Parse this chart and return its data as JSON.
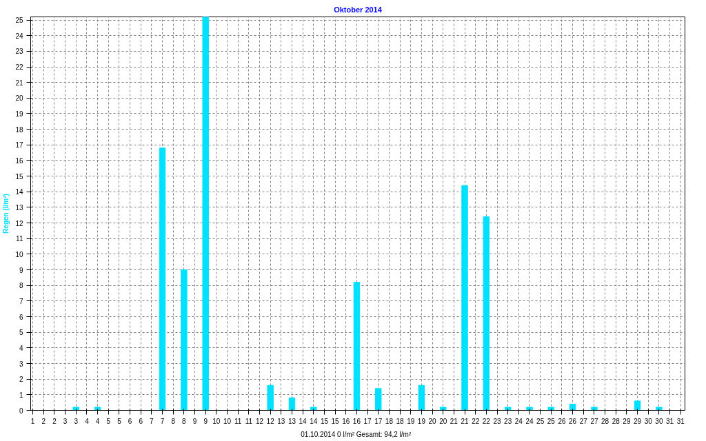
{
  "chart_data": {
    "type": "bar",
    "title": "Oktober 2014",
    "ylabel": "Regen (l/m²)",
    "annotations": [
      "01.10.2014   0 l/m² Gesamt: 94,2 l/m²"
    ],
    "x": [
      1,
      2,
      3,
      4,
      5,
      6,
      7,
      8,
      9,
      10,
      11,
      12,
      13,
      14,
      15,
      16,
      17,
      18,
      19,
      20,
      21,
      22,
      23,
      24,
      25,
      26,
      27,
      28,
      29,
      30,
      31
    ],
    "series": [
      {
        "color": "#00e1ff",
        "values": [
          0,
          0,
          0.2,
          0.2,
          0,
          0,
          16.8,
          9.0,
          25.2,
          0,
          0,
          1.6,
          0.8,
          0.2,
          0,
          8.2,
          1.4,
          0,
          1.6,
          0.2,
          14.4,
          12.4,
          0.2,
          0.2,
          0.2,
          0.4,
          0.2,
          0,
          0.6,
          0.2,
          0
        ]
      }
    ],
    "xlim": [
      0.9,
      31.2
    ],
    "xticks": [
      1,
      {
        "value": 1.5,
        "label": "2"
      },
      2,
      {
        "value": 2.5,
        "label": "3"
      },
      3,
      {
        "value": 3.5,
        "label": "4"
      },
      4,
      {
        "value": 4.5,
        "label": "5"
      },
      5,
      {
        "value": 5.5,
        "label": "6"
      },
      6,
      {
        "value": 6.5,
        "label": "7"
      },
      7,
      {
        "value": 7.5,
        "label": "8"
      },
      8,
      {
        "value": 8.5,
        "label": "9"
      },
      9,
      {
        "value": 9.5,
        "label": "10"
      },
      10,
      {
        "value": 10.5,
        "label": "11"
      },
      11,
      {
        "value": 11.5,
        "label": "12"
      },
      12,
      {
        "value": 12.5,
        "label": "13"
      },
      13,
      {
        "value": 13.5,
        "label": "14"
      },
      14,
      {
        "value": 14.5,
        "label": "15"
      },
      15,
      {
        "value": 15.5,
        "label": "16"
      },
      16,
      {
        "value": 16.5,
        "label": "17"
      },
      17,
      {
        "value": 17.5,
        "label": "18"
      },
      18,
      {
        "value": 18.5,
        "label": "19"
      },
      19,
      {
        "value": 19.5,
        "label": "20"
      },
      20,
      {
        "value": 20.5,
        "label": "21"
      },
      21,
      {
        "value": 21.5,
        "label": "22"
      },
      22,
      {
        "value": 22.5,
        "label": "23"
      },
      23,
      {
        "value": 23.5,
        "label": "24"
      },
      24,
      {
        "value": 24.5,
        "label": "25"
      },
      25,
      {
        "value": 25.5,
        "label": "26"
      },
      26,
      {
        "value": 26.5,
        "label": "27"
      },
      27,
      {
        "value": 27.5,
        "label": "28"
      },
      28,
      {
        "value": 28.5,
        "label": "29"
      },
      29,
      {
        "value": 29.5,
        "label": "30"
      },
      30,
      {
        "value": 30.5,
        "label": "31"
      },
      31
    ],
    "ylim": [
      0,
      25.2
    ],
    "yticks": [
      0,
      1,
      2,
      3,
      4,
      5,
      6,
      7,
      8,
      9,
      10,
      11,
      12,
      13,
      14,
      15,
      16,
      17,
      18,
      19,
      20,
      21,
      22,
      23,
      24,
      25
    ],
    "grid": true
  }
}
